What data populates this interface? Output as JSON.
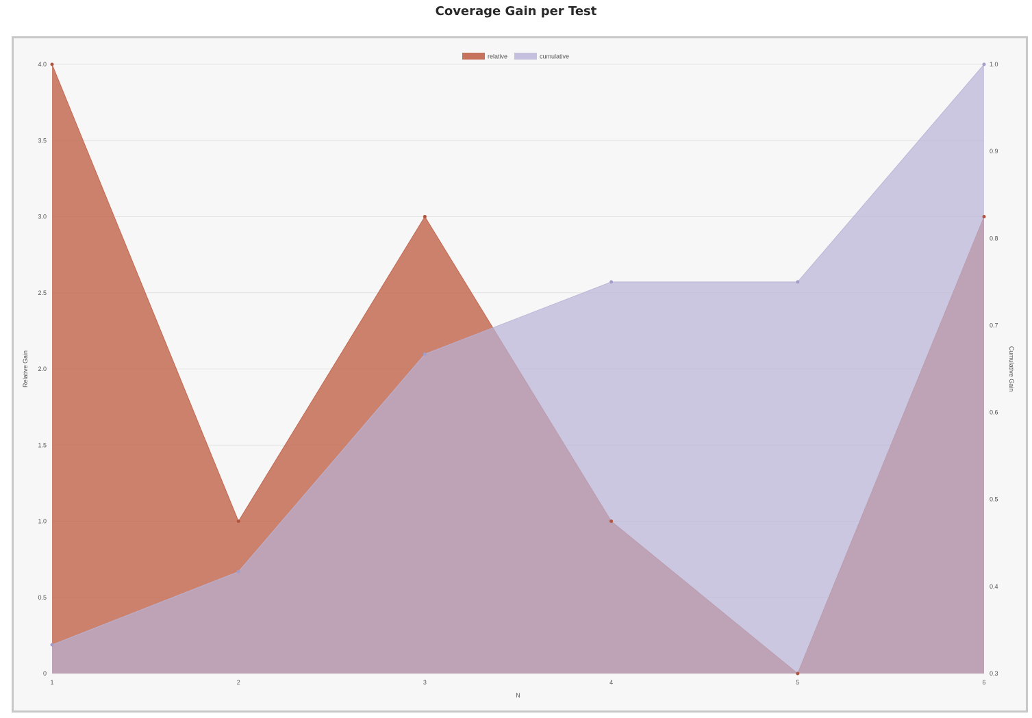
{
  "title": "Coverage Gain per Test",
  "chart_data": {
    "type": "area",
    "x": [
      1,
      2,
      3,
      4,
      5,
      6
    ],
    "xlabel": "N",
    "ylabel": "Relative Gain",
    "y2label": "Cumulative Gain",
    "ylim": [
      0,
      4
    ],
    "y2lim": [
      0.3,
      1.0
    ],
    "y_ticks": [
      "0",
      "0.5",
      "1.0",
      "1.5",
      "2.0",
      "2.5",
      "3.0",
      "3.5",
      "4.0"
    ],
    "y2_ticks": [
      "0.3",
      "0.4",
      "0.5",
      "0.6",
      "0.7",
      "0.8",
      "0.9",
      "1.0"
    ],
    "x_ticks": [
      "1",
      "2",
      "3",
      "4",
      "5",
      "6"
    ],
    "grid": true,
    "legend_position": "top-center",
    "series": [
      {
        "name": "relative",
        "axis": "left",
        "values": [
          4,
          1,
          3,
          1,
          0,
          3
        ],
        "fill": "#c0634a",
        "fill_opacity": 0.8,
        "point_color": "#b0543f"
      },
      {
        "name": "cumulative",
        "axis": "right",
        "values": [
          0.333,
          0.417,
          0.667,
          0.75,
          0.75,
          1.0
        ],
        "fill": "#b8b2d6",
        "fill_opacity": 0.7,
        "point_color": "#a49dc8"
      }
    ]
  }
}
